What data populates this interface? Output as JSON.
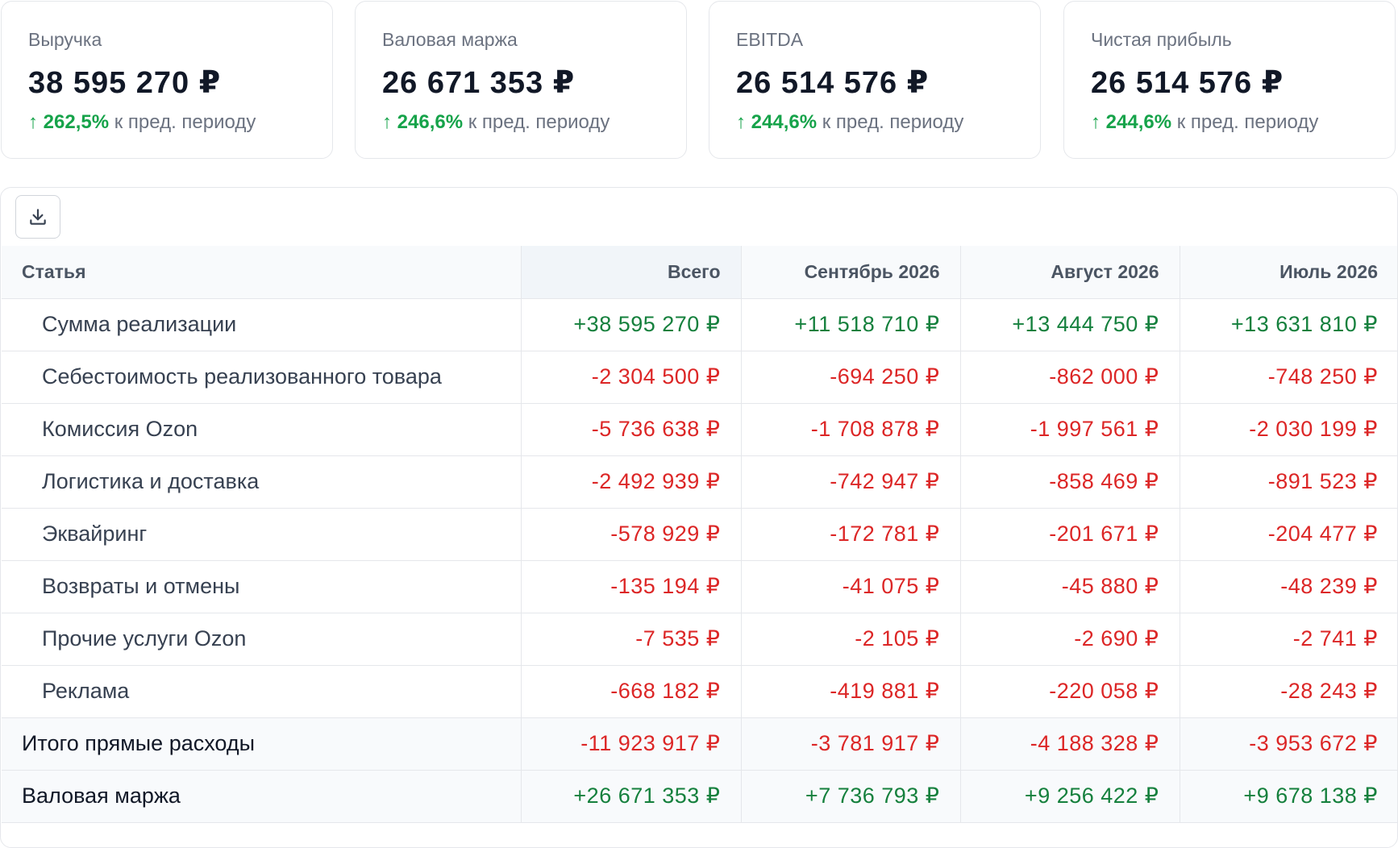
{
  "kpis": [
    {
      "label": "Выручка",
      "value": "38 595 270 ₽",
      "delta_arrow": "↑",
      "delta_pct": "262,5%",
      "delta_text": "к пред. периоду"
    },
    {
      "label": "Валовая маржа",
      "value": "26 671 353 ₽",
      "delta_arrow": "↑",
      "delta_pct": "246,6%",
      "delta_text": "к пред. периоду"
    },
    {
      "label": "EBITDA",
      "value": "26 514 576 ₽",
      "delta_arrow": "↑",
      "delta_pct": "244,6%",
      "delta_text": "к пред. периоду"
    },
    {
      "label": "Чистая прибыль",
      "value": "26 514 576 ₽",
      "delta_arrow": "↑",
      "delta_pct": "244,6%",
      "delta_text": "к пред. периоду"
    }
  ],
  "toolbar": {
    "download_icon": "download-icon"
  },
  "table": {
    "headers": [
      "Статья",
      "Всего",
      "Сентябрь 2026",
      "Август 2026",
      "Июль 2026"
    ],
    "rows": [
      {
        "name": "Сумма реализации",
        "values": [
          "+38 595 270 ₽",
          "+11 518 710 ₽",
          "+13 444 750 ₽",
          "+13 631 810 ₽"
        ]
      },
      {
        "name": "Себестоимость реализованного товара",
        "values": [
          "-2 304 500 ₽",
          "-694 250 ₽",
          "-862 000 ₽",
          "-748 250 ₽"
        ]
      },
      {
        "name": "Комиссия Ozon",
        "values": [
          "-5 736 638 ₽",
          "-1 708 878 ₽",
          "-1 997 561 ₽",
          "-2 030 199 ₽"
        ]
      },
      {
        "name": "Логистика и доставка",
        "values": [
          "-2 492 939 ₽",
          "-742 947 ₽",
          "-858 469 ₽",
          "-891 523 ₽"
        ]
      },
      {
        "name": "Эквайринг",
        "values": [
          "-578 929 ₽",
          "-172 781 ₽",
          "-201 671 ₽",
          "-204 477 ₽"
        ]
      },
      {
        "name": "Возвраты и отмены",
        "values": [
          "-135 194 ₽",
          "-41 075 ₽",
          "-45 880 ₽",
          "-48 239 ₽"
        ]
      },
      {
        "name": "Прочие услуги Ozon",
        "values": [
          "-7 535 ₽",
          "-2 105 ₽",
          "-2 690 ₽",
          "-2 741 ₽"
        ]
      },
      {
        "name": "Реклама",
        "values": [
          "-668 182 ₽",
          "-419 881 ₽",
          "-220 058 ₽",
          "-28 243 ₽"
        ]
      }
    ],
    "summary_rows": [
      {
        "name": "Итого прямые расходы",
        "values": [
          "-11 923 917 ₽",
          "-3 781 917 ₽",
          "-4 188 328 ₽",
          "-3 953 672 ₽"
        ]
      },
      {
        "name": "Валовая маржа",
        "values": [
          "+26 671 353 ₽",
          "+7 736 793 ₽",
          "+9 256 422 ₽",
          "+9 678 138 ₽"
        ]
      }
    ]
  },
  "colors": {
    "positive": "#15803d",
    "negative": "#dc2626",
    "accent_green": "#16a34a"
  }
}
